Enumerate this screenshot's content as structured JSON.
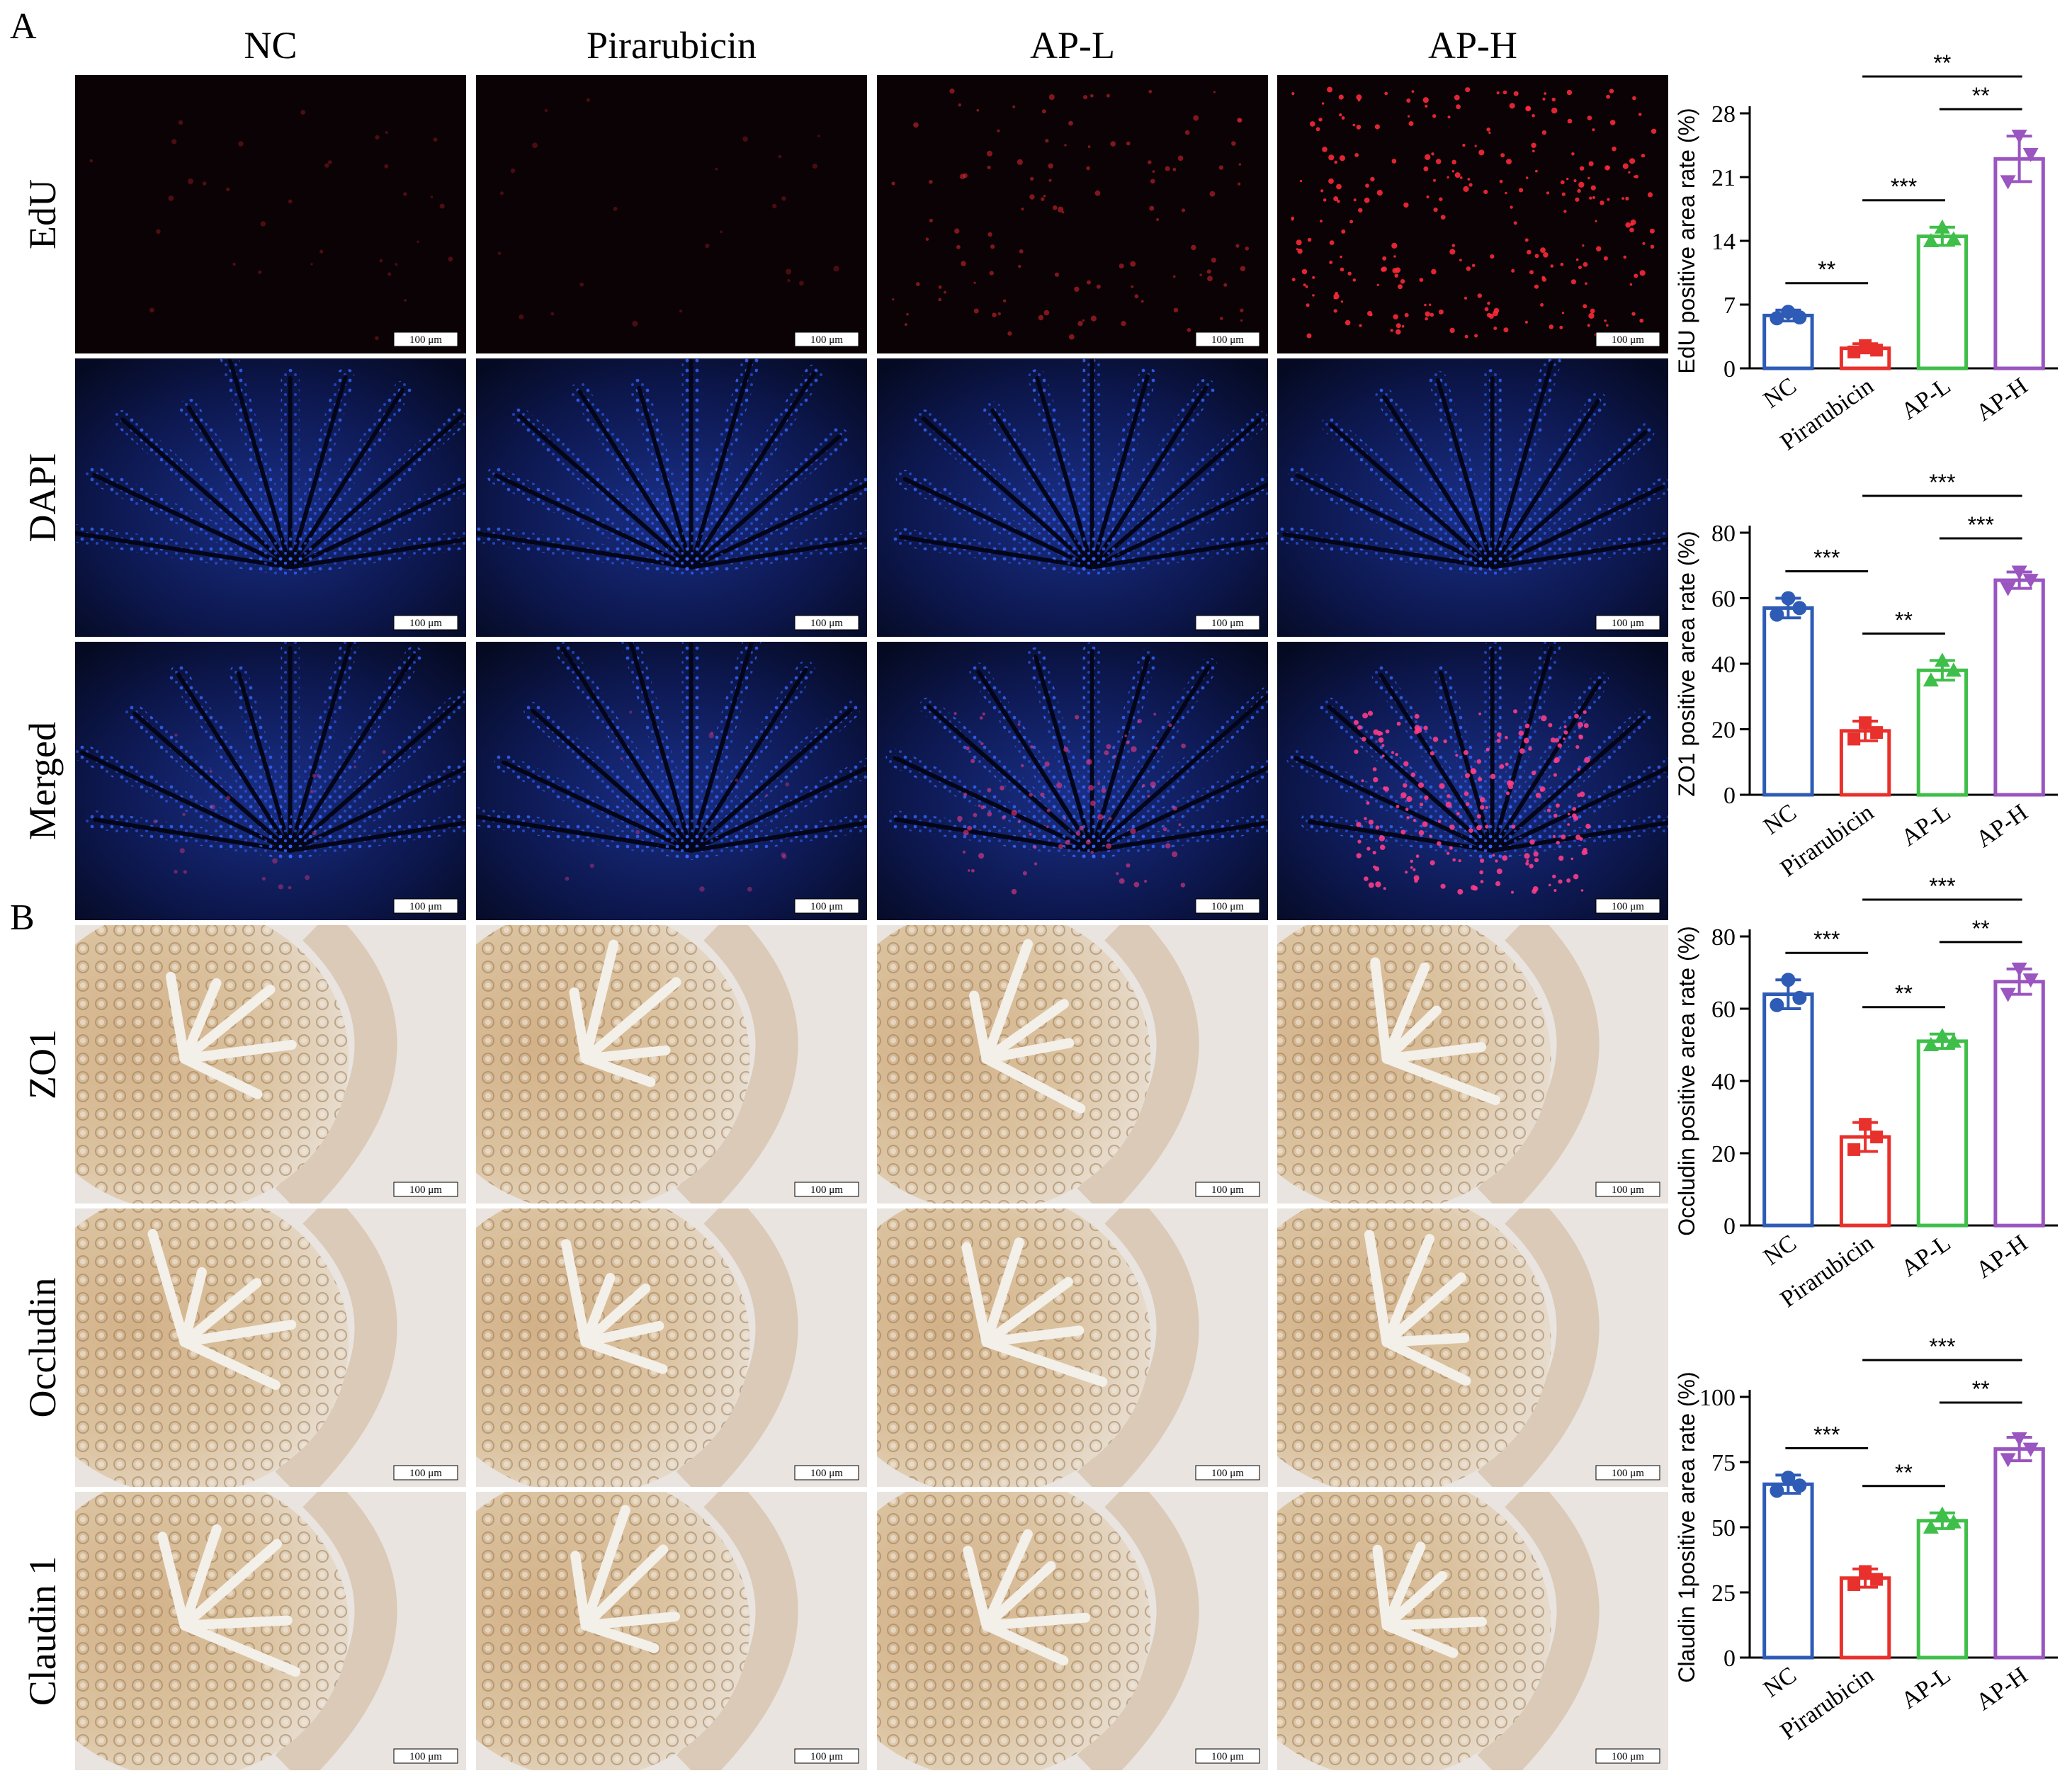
{
  "figure": {
    "panel_labels": [
      "A",
      "B"
    ],
    "columns": [
      "NC",
      "Pirarubicin",
      "AP-L",
      "AP-H"
    ],
    "rows_a": [
      "EdU",
      "DAPI",
      "Merged"
    ],
    "rows_b": [
      "ZO1",
      "Occludin",
      "Claudin 1"
    ],
    "scale_bar_label": "100 μm",
    "colors": {
      "NC": "#2e5bb5",
      "Pirarubicin": "#e8302c",
      "AP-L": "#3fbf4a",
      "AP-H": "#9a55c0",
      "dapi_blue": "#2f58d8",
      "edu_red": "#ff2a3a",
      "tissue_brown": "#c9a679",
      "background_ihc": "#e9e4df"
    }
  },
  "chart_data": [
    {
      "type": "bar",
      "categories": [
        "NC",
        "Pirarubicin",
        "AP-L",
        "AP-H"
      ],
      "values": [
        5.8,
        2.2,
        14.5,
        23.0
      ],
      "errors": [
        0.6,
        0.5,
        1.0,
        2.5
      ],
      "points": [
        [
          5.5,
          6.2,
          5.6
        ],
        [
          1.8,
          2.5,
          2.0
        ],
        [
          14.0,
          15.5,
          14.2
        ],
        [
          20.5,
          25.5,
          23.5
        ]
      ],
      "ylabel": "EdU positive area rate (%)",
      "ylim": [
        0,
        28
      ],
      "yticks": [
        "0",
        "7",
        "14",
        "21",
        "28"
      ],
      "markers": [
        "circle",
        "square",
        "triangle-up",
        "triangle-down"
      ],
      "significance": [
        {
          "from": 0,
          "to": 1,
          "label": "**"
        },
        {
          "from": 1,
          "to": 2,
          "label": "***"
        },
        {
          "from": 2,
          "to": 3,
          "label": "**"
        },
        {
          "from": 1,
          "to": 3,
          "label": "**"
        }
      ]
    },
    {
      "type": "bar",
      "categories": [
        "NC",
        "Pirarubicin",
        "AP-L",
        "AP-H"
      ],
      "values": [
        57.0,
        19.5,
        38.0,
        65.5
      ],
      "errors": [
        3.0,
        3.0,
        3.0,
        2.5
      ],
      "points": [
        [
          55.0,
          60.0,
          57.0
        ],
        [
          17.0,
          22.0,
          19.0
        ],
        [
          35.0,
          41.0,
          38.0
        ],
        [
          63.0,
          68.0,
          65.5
        ]
      ],
      "ylabel": "ZO1 positive area rate (%)",
      "ylim": [
        0,
        80
      ],
      "yticks": [
        "0",
        "20",
        "40",
        "60",
        "80"
      ],
      "markers": [
        "circle",
        "square",
        "triangle-up",
        "triangle-down"
      ],
      "significance": [
        {
          "from": 0,
          "to": 1,
          "label": "***"
        },
        {
          "from": 1,
          "to": 2,
          "label": "**"
        },
        {
          "from": 2,
          "to": 3,
          "label": "***"
        },
        {
          "from": 1,
          "to": 3,
          "label": "***"
        }
      ]
    },
    {
      "type": "bar",
      "categories": [
        "NC",
        "Pirarubicin",
        "AP-L",
        "AP-H"
      ],
      "values": [
        64.0,
        24.5,
        51.0,
        67.5
      ],
      "errors": [
        4.0,
        4.0,
        2.0,
        3.5
      ],
      "points": [
        [
          61.0,
          68.0,
          63.0
        ],
        [
          21.0,
          28.0,
          24.5
        ],
        [
          50.0,
          52.5,
          51.0
        ],
        [
          64.0,
          71.0,
          68.0
        ]
      ],
      "ylabel": "Occludin positive area rate (%)",
      "ylim": [
        0,
        80
      ],
      "yticks": [
        "0",
        "20",
        "40",
        "60",
        "80"
      ],
      "markers": [
        "circle",
        "square",
        "triangle-up",
        "triangle-down"
      ],
      "significance": [
        {
          "from": 0,
          "to": 1,
          "label": "***"
        },
        {
          "from": 1,
          "to": 2,
          "label": "**"
        },
        {
          "from": 2,
          "to": 3,
          "label": "**"
        },
        {
          "from": 1,
          "to": 3,
          "label": "***"
        }
      ]
    },
    {
      "type": "bar",
      "categories": [
        "NC",
        "Pirarubicin",
        "AP-L",
        "AP-H"
      ],
      "values": [
        66.5,
        30.5,
        52.5,
        80.0
      ],
      "errors": [
        3.5,
        3.5,
        3.0,
        4.5
      ],
      "points": [
        [
          64.0,
          69.0,
          66.0
        ],
        [
          28.0,
          33.0,
          30.0
        ],
        [
          50.0,
          55.0,
          52.0
        ],
        [
          76.0,
          84.0,
          80.0
        ]
      ],
      "ylabel": "Claudin 1positive area rate (%)",
      "ylim": [
        0,
        100
      ],
      "yticks": [
        "0",
        "25",
        "50",
        "75",
        "100"
      ],
      "markers": [
        "circle",
        "square",
        "triangle-up",
        "triangle-down"
      ],
      "significance": [
        {
          "from": 0,
          "to": 1,
          "label": "***"
        },
        {
          "from": 1,
          "to": 2,
          "label": "**"
        },
        {
          "from": 2,
          "to": 3,
          "label": "**"
        },
        {
          "from": 1,
          "to": 3,
          "label": "***"
        }
      ]
    }
  ]
}
